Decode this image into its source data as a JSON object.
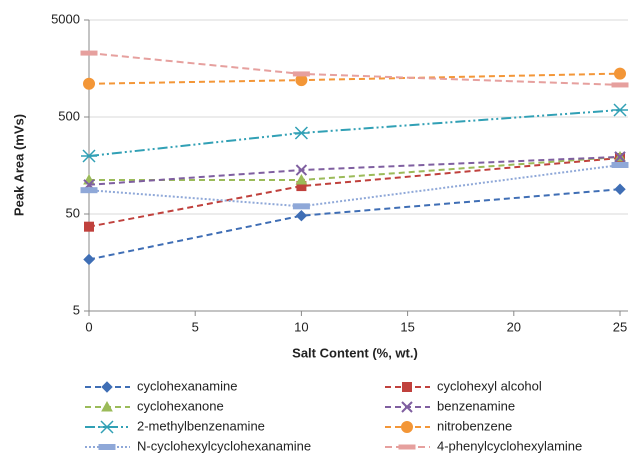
{
  "chart_data": {
    "type": "line",
    "x_label": "Salt Content (%, wt.)",
    "y_label": "Peak Area (mVs)",
    "xlim": [
      0,
      25
    ],
    "xticks": [
      0,
      5,
      10,
      15,
      20,
      25
    ],
    "ylim": [
      5,
      5000
    ],
    "yticks": [
      5,
      50,
      500,
      5000
    ],
    "log_y": true,
    "grid": true,
    "x": [
      0,
      10,
      25
    ],
    "series": [
      {
        "name": "cyclohexanamine",
        "color": "#3f6eb5",
        "values": [
          17,
          48,
          90
        ]
      },
      {
        "name": "cyclohexyl alcohol",
        "color": "#c0413d",
        "values": [
          37,
          97,
          189
        ]
      },
      {
        "name": "cyclohexanone",
        "color": "#9bbb59",
        "values": [
          112,
          112,
          194
        ]
      },
      {
        "name": "benzenamine",
        "color": "#7f5fa0",
        "values": [
          100,
          142,
          194
        ]
      },
      {
        "name": "2-methylbenzenamine",
        "color": "#31a0b5",
        "values": [
          198,
          342,
          590
        ]
      },
      {
        "name": "nitrobenzene",
        "color": "#f39637",
        "values": [
          1100,
          1200,
          1400
        ]
      },
      {
        "name": "N-cyclohexylcyclohexanamine",
        "color": "#8fa8d8",
        "values": [
          88,
          60,
          160
        ]
      },
      {
        "name": "4-phenylcyclohexylamine",
        "color": "#e6a09e",
        "values": [
          2280,
          1390,
          1070
        ]
      }
    ]
  }
}
